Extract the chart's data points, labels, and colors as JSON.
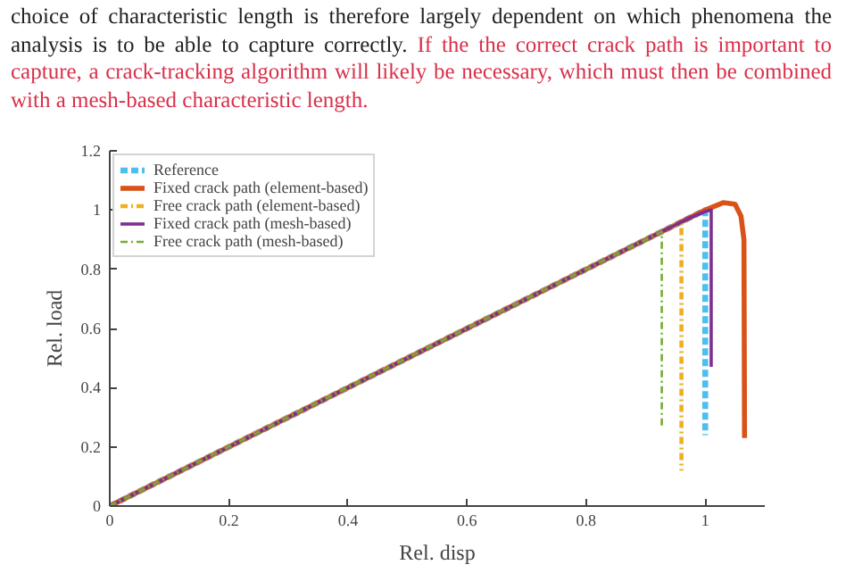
{
  "chart_data": {
    "type": "line",
    "xlabel": "Rel. disp",
    "ylabel": "Rel. load",
    "annotations": [
      "choice of characteristic length is therefore largely dependent on which phenomena the analysis is to be able to capture correctly.",
      "If the the correct crack path is important to capture, a crack-tracking algorithm will likely be necessary, which must then be combined with a mesh-based characteristic length."
    ],
    "xlim": [
      0,
      1.1
    ],
    "ylim": [
      0,
      1.2
    ],
    "xticks": [
      0,
      0.2,
      0.4,
      0.6,
      0.8,
      1
    ],
    "yticks": [
      0,
      0.2,
      0.4,
      0.6,
      0.8,
      1,
      1.2
    ],
    "grid": false,
    "legend": "top left",
    "marker": "none",
    "series": [
      {
        "name": "Reference",
        "color": "#4dbeee",
        "line_style": "dashed",
        "x": [
          0,
          0.97,
          1.0,
          1.0
        ],
        "values": [
          0,
          0.97,
          1.0,
          0.24
        ]
      },
      {
        "name": "Fixed crack path (element-based)",
        "color": "#d95319",
        "line_style": "solid",
        "x": [
          0,
          0.97,
          1.0,
          1.03,
          1.05,
          1.06,
          1.065,
          1.066
        ],
        "values": [
          0,
          0.97,
          1.0,
          1.025,
          1.02,
          0.98,
          0.9,
          0.23
        ]
      },
      {
        "name": "Free crack path (element-based)",
        "color": "#edb120",
        "line_style": "dotted",
        "x": [
          0,
          0.95,
          0.96,
          0.96
        ],
        "values": [
          0,
          0.95,
          0.955,
          0.12
        ]
      },
      {
        "name": "Fixed crack path (mesh-based)",
        "color": "#7e2f8e",
        "line_style": "solid",
        "x": [
          0,
          0.97,
          1.0,
          1.01,
          1.01
        ],
        "values": [
          0,
          0.97,
          0.995,
          1.0,
          0.47
        ]
      },
      {
        "name": "Free crack path (mesh-based)",
        "color": "#77ac30",
        "line_style": "dotted",
        "x": [
          0,
          0.927,
          0.927
        ],
        "values": [
          0,
          0.927,
          0.27
        ]
      }
    ]
  }
}
